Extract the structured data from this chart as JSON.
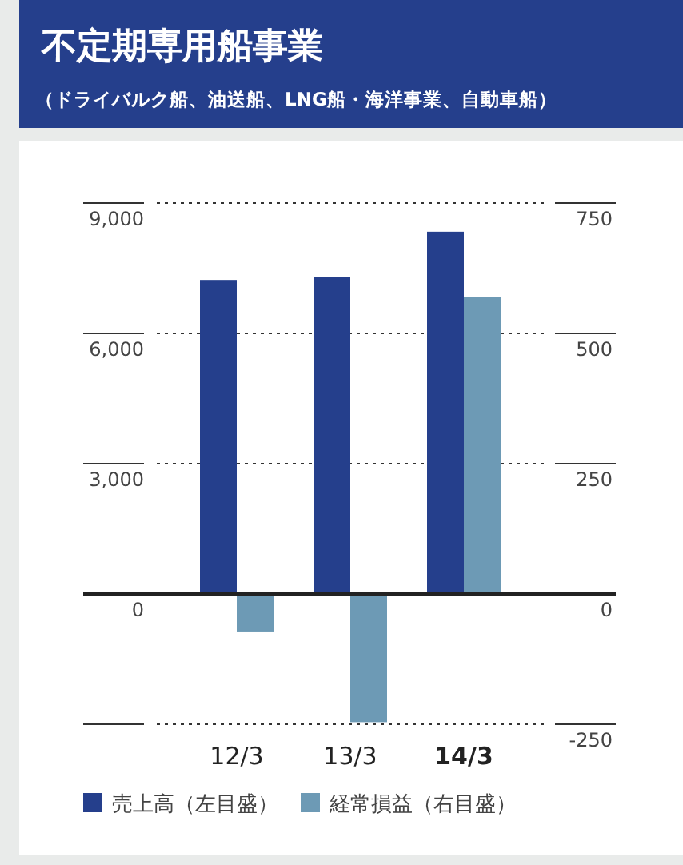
{
  "chart_data": {
    "type": "bar",
    "title": "不定期専用船事業",
    "subtitle": "（ドライバルク船、油送船、LNG船・海洋事業、自動車船）",
    "categories": [
      "12/3",
      "13/3",
      "14/3"
    ],
    "series": [
      {
        "name": "売上高（左目盛）",
        "color": "#253f8c",
        "values": [
          7230,
          7300,
          8340
        ]
      },
      {
        "name": "経常損益（右目盛）",
        "color": "#6d9ab5",
        "values": [
          -72,
          -246,
          570
        ],
        "axis": "y2"
      }
    ],
    "ylim": [
      -3000,
      9000
    ],
    "yticks": [
      {
        "value": -3000,
        "label": null
      },
      0,
      {
        "value": 3000,
        "label": "3,000"
      },
      {
        "value": 6000,
        "label": "6,000"
      },
      {
        "value": 9000,
        "label": "9,000"
      }
    ],
    "y2lim": [
      -250,
      750
    ],
    "y2ticks": [
      -250,
      0,
      250,
      500,
      750
    ],
    "grid": "y",
    "legend": "bottom"
  }
}
